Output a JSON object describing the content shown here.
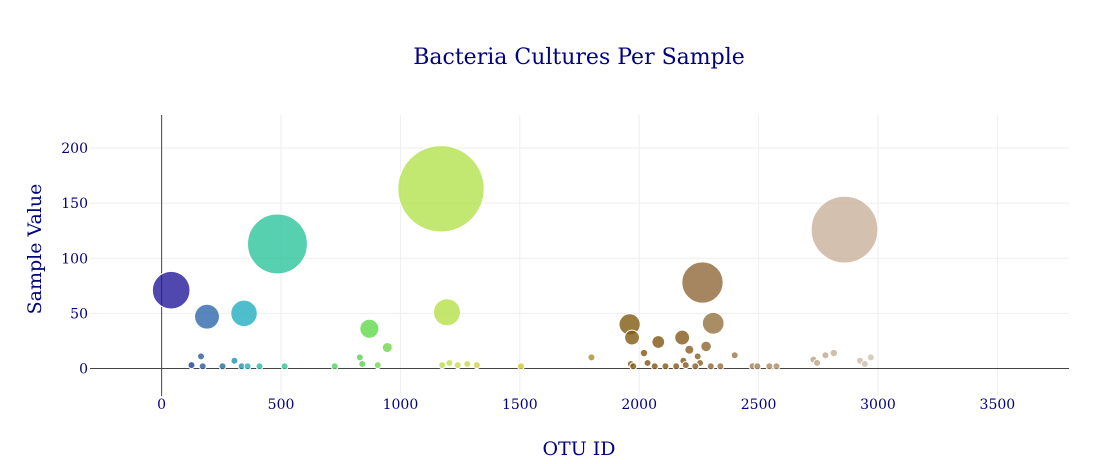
{
  "chart_data": {
    "type": "scatter",
    "subtype": "bubble",
    "title": "Bacteria Cultures Per Sample",
    "xlabel": "OTU ID",
    "ylabel": "Sample Value",
    "xlim": [
      -300,
      3800
    ],
    "ylim": [
      -25,
      230
    ],
    "xticks": [
      0,
      500,
      1000,
      1500,
      2000,
      2500,
      3000,
      3500
    ],
    "yticks": [
      0,
      50,
      100,
      150,
      200
    ],
    "grid": true,
    "legend": "none",
    "colorscale": "earth",
    "points": [
      {
        "x": 40,
        "y": 71,
        "color": "#24199b"
      },
      {
        "x": 125,
        "y": 3,
        "color": "#233d8f"
      },
      {
        "x": 165,
        "y": 11,
        "color": "#2a5a9c"
      },
      {
        "x": 172,
        "y": 2,
        "color": "#2a5a9c"
      },
      {
        "x": 190,
        "y": 47,
        "color": "#2f67ad"
      },
      {
        "x": 255,
        "y": 2,
        "color": "#1d6e9a"
      },
      {
        "x": 305,
        "y": 7,
        "color": "#2391ac"
      },
      {
        "x": 335,
        "y": 2,
        "color": "#2391ac"
      },
      {
        "x": 345,
        "y": 50,
        "color": "#22aebf"
      },
      {
        "x": 360,
        "y": 2,
        "color": "#28b2b4"
      },
      {
        "x": 410,
        "y": 2,
        "color": "#2db9a8"
      },
      {
        "x": 485,
        "y": 113,
        "color": "#2cc49b"
      },
      {
        "x": 515,
        "y": 2,
        "color": "#36c096"
      },
      {
        "x": 725,
        "y": 2,
        "color": "#4fd05e"
      },
      {
        "x": 830,
        "y": 10,
        "color": "#57d34d"
      },
      {
        "x": 840,
        "y": 4,
        "color": "#57d34d"
      },
      {
        "x": 870,
        "y": 36,
        "color": "#5ed94a"
      },
      {
        "x": 905,
        "y": 3,
        "color": "#6ada4d"
      },
      {
        "x": 945,
        "y": 19,
        "color": "#6ad64a"
      },
      {
        "x": 1170,
        "y": 163,
        "color": "#b3e24d"
      },
      {
        "x": 1175,
        "y": 3,
        "color": "#b9df4a"
      },
      {
        "x": 1195,
        "y": 51,
        "color": "#b7e048"
      },
      {
        "x": 1205,
        "y": 5,
        "color": "#c2df4a"
      },
      {
        "x": 1240,
        "y": 3,
        "color": "#c8db4a"
      },
      {
        "x": 1280,
        "y": 4,
        "color": "#cbd64a"
      },
      {
        "x": 1320,
        "y": 3,
        "color": "#cfd24a"
      },
      {
        "x": 1505,
        "y": 2,
        "color": "#d4c82a"
      },
      {
        "x": 1800,
        "y": 10,
        "color": "#a88d1c"
      },
      {
        "x": 1960,
        "y": 40,
        "color": "#7f5a10"
      },
      {
        "x": 1965,
        "y": 4,
        "color": "#7f5a10"
      },
      {
        "x": 1970,
        "y": 28,
        "color": "#7f5a10"
      },
      {
        "x": 1975,
        "y": 2,
        "color": "#7f5a10"
      },
      {
        "x": 2020,
        "y": 14,
        "color": "#7e560f"
      },
      {
        "x": 2035,
        "y": 5,
        "color": "#7e560f"
      },
      {
        "x": 2065,
        "y": 2,
        "color": "#805512"
      },
      {
        "x": 2080,
        "y": 24,
        "color": "#805512"
      },
      {
        "x": 2110,
        "y": 2,
        "color": "#835716"
      },
      {
        "x": 2155,
        "y": 2,
        "color": "#835716"
      },
      {
        "x": 2180,
        "y": 28,
        "color": "#855a1b"
      },
      {
        "x": 2185,
        "y": 7,
        "color": "#855a1b"
      },
      {
        "x": 2195,
        "y": 3,
        "color": "#855a1b"
      },
      {
        "x": 2210,
        "y": 17,
        "color": "#885d20"
      },
      {
        "x": 2235,
        "y": 2,
        "color": "#885d20"
      },
      {
        "x": 2245,
        "y": 11,
        "color": "#8a6024"
      },
      {
        "x": 2255,
        "y": 5,
        "color": "#8a6024"
      },
      {
        "x": 2265,
        "y": 78,
        "color": "#8f6838"
      },
      {
        "x": 2280,
        "y": 20,
        "color": "#8c6430"
      },
      {
        "x": 2300,
        "y": 2,
        "color": "#8f6838"
      },
      {
        "x": 2310,
        "y": 41,
        "color": "#94703f"
      },
      {
        "x": 2340,
        "y": 2,
        "color": "#966f40"
      },
      {
        "x": 2400,
        "y": 12,
        "color": "#9a7548"
      },
      {
        "x": 2475,
        "y": 2,
        "color": "#a07d55"
      },
      {
        "x": 2495,
        "y": 2,
        "color": "#a27f57"
      },
      {
        "x": 2545,
        "y": 2,
        "color": "#a8895f"
      },
      {
        "x": 2575,
        "y": 2,
        "color": "#ab8c66"
      },
      {
        "x": 2730,
        "y": 8,
        "color": "#b89e80"
      },
      {
        "x": 2745,
        "y": 5,
        "color": "#bba282"
      },
      {
        "x": 2780,
        "y": 12,
        "color": "#c0a88a"
      },
      {
        "x": 2815,
        "y": 14,
        "color": "#c4ae94"
      },
      {
        "x": 2860,
        "y": 126,
        "color": "#c8b09a"
      },
      {
        "x": 2925,
        "y": 7,
        "color": "#ccb8a4"
      },
      {
        "x": 2945,
        "y": 4,
        "color": "#cfbca8"
      },
      {
        "x": 2970,
        "y": 10,
        "color": "#d0bfac"
      }
    ]
  }
}
